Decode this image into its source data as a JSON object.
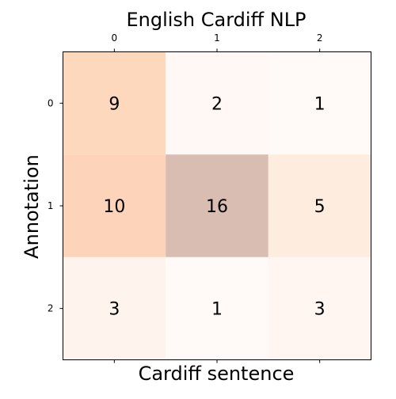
{
  "chart_data": {
    "type": "heatmap",
    "title": "English Cardiff NLP",
    "xlabel": "Cardiff sentence",
    "ylabel": "Annotation",
    "x_categories": [
      "0",
      "1",
      "2"
    ],
    "y_categories": [
      "0",
      "1",
      "2"
    ],
    "values": [
      [
        9,
        2,
        1
      ],
      [
        10,
        16,
        5
      ],
      [
        3,
        1,
        3
      ]
    ],
    "cell_colors": [
      [
        "#fed8bd",
        "#fff8f4",
        "#fff9f7"
      ],
      [
        "#fdd4b9",
        "#d9bdb2",
        "#feedde"
      ],
      [
        "#fff3ee",
        "#fffaf8",
        "#fff6f2"
      ]
    ],
    "x_ticks_position": "top",
    "grid": false
  }
}
